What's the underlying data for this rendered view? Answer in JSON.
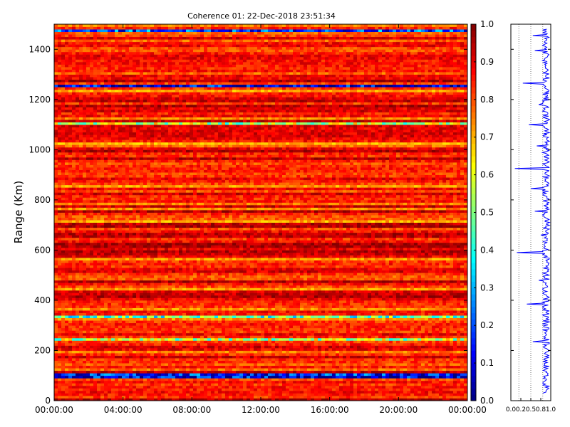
{
  "chart_data": [
    {
      "type": "heatmap",
      "title": "Coherence 01: 22-Dec-2018 23:51:34",
      "xlabel": "",
      "ylabel": "Range (Km)",
      "x_tick_labels": [
        "00:00:00",
        "04:00:00",
        "08:00:00",
        "12:00:00",
        "16:00:00",
        "20:00:00",
        "00:00:00"
      ],
      "xlim_hours": [
        0,
        24
      ],
      "ylim": [
        0,
        1500
      ],
      "y_ticks": [
        0,
        200,
        400,
        600,
        800,
        1000,
        1200,
        1400
      ],
      "colormap": "jet",
      "colorbar": {
        "range": [
          0.0,
          1.0
        ],
        "tick_labels": [
          "0.0",
          "0.1",
          "0.2",
          "0.3",
          "0.4",
          "0.5",
          "0.6",
          "0.7",
          "0.8",
          "0.9",
          "1.0"
        ]
      },
      "typical_value": 0.85,
      "low_coherence_rows_km": [
        {
          "range": 1477,
          "value": 0.2
        },
        {
          "range": 1255,
          "value": 0.1
        },
        {
          "range": 1105,
          "value": 0.55
        },
        {
          "range": 333,
          "value": 0.45
        },
        {
          "range": 240,
          "value": 0.55
        },
        {
          "range": 105,
          "value": 0.15
        },
        {
          "range": 90,
          "value": 0.1
        }
      ]
    },
    {
      "type": "line",
      "xlabel": "",
      "ylabel": "",
      "xlim": [
        0,
        1
      ],
      "x_tick_labels": [
        "0.0",
        "0.2",
        "0.5",
        "0.8",
        "1.0"
      ],
      "ylim": [
        0,
        1500
      ],
      "grid": "vertical dotted",
      "series_color": "#0000ff",
      "x": [
        0.9,
        0.88,
        0.55,
        0.9,
        0.85,
        0.6,
        0.92,
        0.85,
        0.88,
        0.3,
        0.92,
        0.86,
        0.7,
        0.9,
        0.88,
        0.45,
        0.85,
        0.9,
        0.65,
        0.88,
        0.92,
        0.1,
        0.9,
        0.85,
        0.5,
        0.88,
        0.9,
        0.6,
        0.92,
        0.87,
        0.75,
        0.9,
        0.15,
        0.88,
        0.92,
        0.7,
        0.86,
        0.9,
        0.4,
        0.88,
        0.9,
        0.85,
        0.55,
        0.9,
        0.92,
        0.8
      ],
      "y": [
        1480,
        1470,
        1455,
        1440,
        1420,
        1395,
        1370,
        1340,
        1310,
        1265,
        1240,
        1210,
        1180,
        1150,
        1125,
        1100,
        1075,
        1045,
        1015,
        985,
        955,
        925,
        900,
        875,
        845,
        815,
        785,
        755,
        725,
        695,
        660,
        630,
        590,
        560,
        520,
        480,
        450,
        420,
        385,
        350,
        310,
        270,
        235,
        160,
        105,
        30
      ]
    }
  ]
}
